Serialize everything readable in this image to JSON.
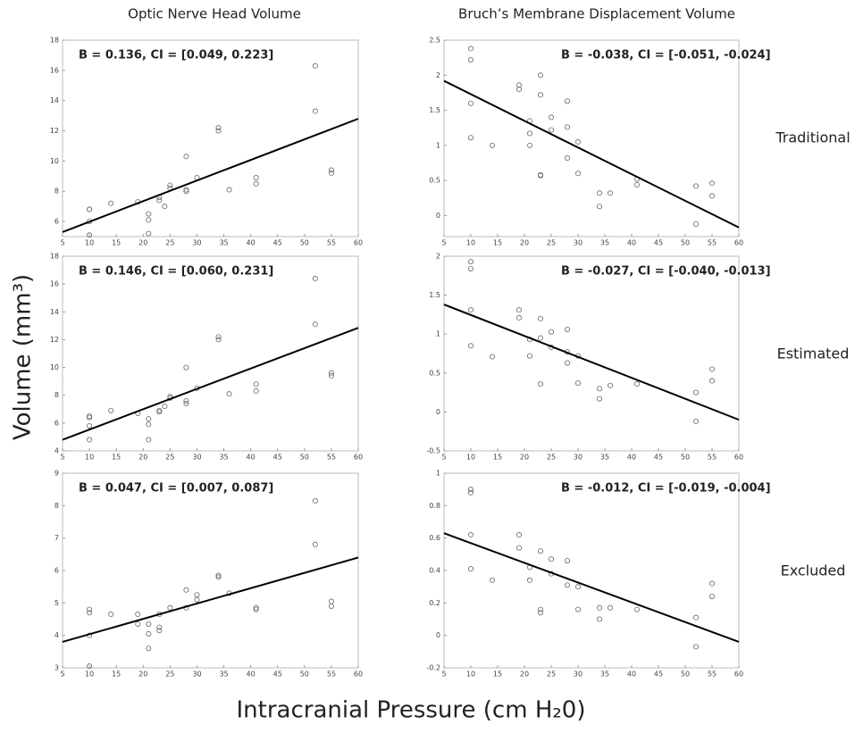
{
  "column_titles": [
    "Optic Nerve Head Volume",
    "Bruch’s Membrane Displacement Volume"
  ],
  "row_labels": [
    "Traditional",
    "Estimated",
    "Excluded"
  ],
  "y_label": "Volume (mm³)",
  "x_label": "Intracranial Pressure (cm H₂0)",
  "chart_data": [
    {
      "type": "scatter",
      "annotation": "B = 0.136, CI = [0.049, 0.223]",
      "x": [
        10,
        10,
        10,
        10,
        14,
        19,
        21,
        21,
        21,
        23,
        23,
        24,
        25,
        25,
        28,
        28,
        28,
        30,
        34,
        34,
        36,
        41,
        41,
        52,
        52,
        55,
        55
      ],
      "values": [
        6.8,
        6.8,
        5.1,
        6.0,
        7.2,
        7.3,
        6.5,
        6.1,
        5.2,
        7.6,
        7.4,
        7.0,
        8.2,
        8.4,
        10.3,
        8.1,
        8.0,
        8.9,
        12.0,
        12.2,
        8.1,
        8.5,
        8.9,
        16.3,
        13.3,
        9.4,
        9.2
      ],
      "fit": {
        "x": [
          5,
          60
        ],
        "values": [
          5.3,
          12.8
        ]
      },
      "xlim": [
        5,
        60
      ],
      "xticks": [
        5,
        10,
        15,
        20,
        25,
        30,
        35,
        40,
        45,
        50,
        55,
        60
      ],
      "ylim": [
        5,
        18
      ],
      "yticks": [
        6,
        8,
        10,
        12,
        14,
        16,
        18
      ]
    },
    {
      "type": "scatter",
      "annotation": "B = -0.038, CI = [-0.051, -0.024]",
      "x": [
        10,
        10,
        10,
        10,
        14,
        19,
        19,
        21,
        21,
        21,
        23,
        23,
        23,
        23,
        25,
        25,
        28,
        28,
        28,
        30,
        30,
        34,
        34,
        36,
        41,
        41,
        52,
        52,
        55,
        55
      ],
      "values": [
        2.38,
        2.22,
        1.6,
        1.11,
        1.0,
        1.86,
        1.8,
        1.35,
        1.17,
        1.0,
        2.0,
        1.72,
        0.58,
        0.57,
        1.4,
        1.22,
        1.63,
        1.26,
        0.82,
        1.05,
        0.6,
        0.32,
        0.13,
        0.32,
        0.52,
        0.44,
        0.42,
        -0.12,
        0.46,
        0.28
      ],
      "fit": {
        "x": [
          5,
          60
        ],
        "values": [
          1.92,
          -0.17
        ]
      },
      "xlim": [
        5,
        60
      ],
      "xticks": [
        5,
        10,
        15,
        20,
        25,
        30,
        35,
        40,
        45,
        50,
        55,
        60
      ],
      "ylim": [
        -0.3,
        2.5
      ],
      "yticks": [
        0,
        0.5,
        1,
        1.5,
        2,
        2.5
      ]
    },
    {
      "type": "scatter",
      "annotation": "B = 0.146, CI = [0.060, 0.231]",
      "x": [
        10,
        10,
        10,
        10,
        14,
        19,
        21,
        21,
        21,
        23,
        23,
        24,
        25,
        25,
        28,
        28,
        28,
        30,
        34,
        34,
        36,
        41,
        41,
        52,
        52,
        55,
        55
      ],
      "values": [
        6.5,
        6.4,
        5.8,
        4.8,
        6.9,
        6.7,
        6.3,
        5.9,
        4.8,
        6.9,
        6.8,
        7.2,
        7.8,
        7.9,
        10.0,
        7.6,
        7.4,
        8.5,
        12.0,
        12.2,
        8.1,
        8.3,
        8.8,
        16.4,
        13.1,
        9.6,
        9.4
      ],
      "fit": {
        "x": [
          5,
          60
        ],
        "values": [
          4.8,
          12.85
        ]
      },
      "xlim": [
        5,
        60
      ],
      "xticks": [
        5,
        10,
        15,
        20,
        25,
        30,
        35,
        40,
        45,
        50,
        55,
        60
      ],
      "ylim": [
        4,
        18
      ],
      "yticks": [
        4,
        6,
        8,
        10,
        12,
        14,
        16,
        18
      ]
    },
    {
      "type": "scatter",
      "annotation": "B = -0.027, CI = [-0.040, -0.013]",
      "x": [
        10,
        10,
        10,
        10,
        14,
        19,
        19,
        21,
        21,
        23,
        23,
        23,
        25,
        25,
        28,
        28,
        28,
        30,
        30,
        34,
        34,
        36,
        41,
        52,
        52,
        55,
        55
      ],
      "values": [
        1.93,
        1.84,
        1.31,
        0.85,
        0.71,
        1.31,
        1.21,
        0.93,
        0.72,
        1.2,
        0.95,
        0.36,
        1.03,
        0.83,
        1.06,
        0.77,
        0.63,
        0.72,
        0.37,
        0.3,
        0.17,
        0.34,
        0.36,
        0.25,
        -0.12,
        0.55,
        0.4
      ],
      "fit": {
        "x": [
          5,
          60
        ],
        "values": [
          1.38,
          -0.1
        ]
      },
      "xlim": [
        5,
        60
      ],
      "xticks": [
        5,
        10,
        15,
        20,
        25,
        30,
        35,
        40,
        45,
        50,
        55,
        60
      ],
      "ylim": [
        -0.5,
        2
      ],
      "yticks": [
        -0.5,
        0,
        0.5,
        1,
        1.5,
        2
      ]
    },
    {
      "type": "scatter",
      "annotation": "B = 0.047, CI = [0.007, 0.087]",
      "x": [
        10,
        10,
        10,
        10,
        14,
        19,
        19,
        21,
        21,
        21,
        23,
        23,
        23,
        25,
        28,
        28,
        30,
        30,
        34,
        34,
        36,
        41,
        41,
        52,
        52,
        55,
        55
      ],
      "values": [
        4.8,
        4.7,
        4.0,
        3.05,
        4.65,
        4.65,
        4.35,
        4.35,
        4.05,
        3.6,
        4.65,
        4.25,
        4.15,
        4.85,
        5.4,
        4.85,
        5.25,
        5.1,
        5.8,
        5.85,
        5.3,
        4.85,
        4.8,
        8.15,
        6.8,
        5.05,
        4.9
      ],
      "fit": {
        "x": [
          5,
          60
        ],
        "values": [
          3.8,
          6.4
        ]
      },
      "xlim": [
        5,
        60
      ],
      "xticks": [
        5,
        10,
        15,
        20,
        25,
        30,
        35,
        40,
        45,
        50,
        55,
        60
      ],
      "ylim": [
        3,
        9
      ],
      "yticks": [
        3,
        4,
        5,
        6,
        7,
        8,
        9
      ]
    },
    {
      "type": "scatter",
      "annotation": "B = -0.012, CI = [-0.019, -0.004]",
      "x": [
        10,
        10,
        10,
        10,
        14,
        19,
        19,
        21,
        21,
        23,
        23,
        23,
        25,
        25,
        28,
        28,
        30,
        30,
        34,
        34,
        36,
        41,
        52,
        52,
        55,
        55
      ],
      "values": [
        0.9,
        0.88,
        0.62,
        0.41,
        0.34,
        0.62,
        0.54,
        0.42,
        0.34,
        0.52,
        0.16,
        0.14,
        0.47,
        0.38,
        0.46,
        0.31,
        0.3,
        0.16,
        0.17,
        0.1,
        0.17,
        0.16,
        0.11,
        -0.07,
        0.32,
        0.24
      ],
      "fit": {
        "x": [
          5,
          60
        ],
        "values": [
          0.63,
          -0.04
        ]
      },
      "xlim": [
        5,
        60
      ],
      "xticks": [
        5,
        10,
        15,
        20,
        25,
        30,
        35,
        40,
        45,
        50,
        55,
        60
      ],
      "ylim": [
        -0.2,
        1
      ],
      "yticks": [
        -0.2,
        0,
        0.2,
        0.4,
        0.6,
        0.8,
        1
      ]
    }
  ]
}
